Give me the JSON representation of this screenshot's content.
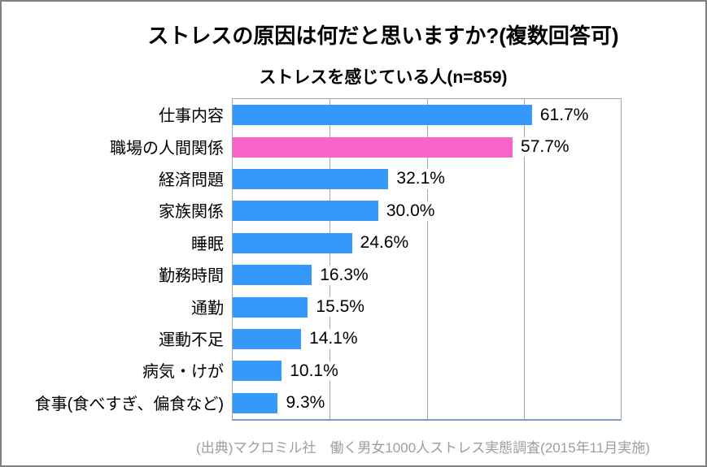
{
  "chart_data": {
    "type": "bar",
    "orientation": "horizontal",
    "title": "ストレスの原因は何だと思いますか?(複数回答可)",
    "subtitle": "ストレスを感じている人(n=859)",
    "categories": [
      "仕事内容",
      "職場の人間関係",
      "経済問題",
      "家族関係",
      "睡眠",
      "勤務時間",
      "通勤",
      "運動不足",
      "病気・けが",
      "食事(食べすぎ、偏食など)"
    ],
    "values": [
      61.7,
      57.7,
      32.1,
      30.0,
      24.6,
      16.3,
      15.5,
      14.1,
      10.1,
      9.3
    ],
    "value_labels": [
      "61.7%",
      "57.7%",
      "32.1%",
      "30.0%",
      "24.6%",
      "16.3%",
      "15.5%",
      "14.1%",
      "10.1%",
      "9.3%"
    ],
    "xlim": [
      0,
      80
    ],
    "interior_gridlines": [
      20,
      40,
      60
    ],
    "grid": true,
    "legend": "none",
    "bar_color": "#3499FB",
    "highlight_index": 1,
    "highlight_color": "#F964C9",
    "source_note": "(出典)マクロミル社　働く男女1000人ストレス実態調査(2015年11月実施)"
  },
  "colors": {
    "page_border": "#808080",
    "plot_border": "#A6A6A6",
    "axis_bottom": "#7E9CC9",
    "gridline": "#A6A6A6",
    "title_text": "#000000",
    "source_text": "#9E9E9E",
    "background": "#FFFFFF"
  }
}
